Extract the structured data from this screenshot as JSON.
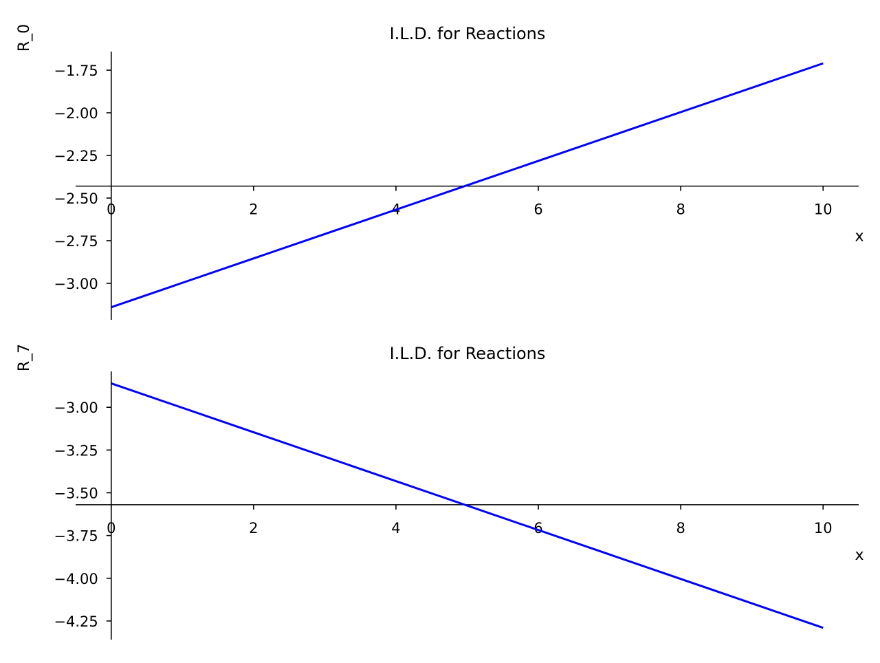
{
  "chart_data": [
    {
      "type": "line",
      "title": "I.L.D. for Reactions",
      "xlabel": "x",
      "ylabel": "R_0",
      "xlim": [
        -0.5,
        10.5
      ],
      "ylim": [
        -3.214,
        -1.641
      ],
      "xticks": [
        0,
        2,
        4,
        6,
        8,
        10
      ],
      "yticks": [
        -1.75,
        -2.0,
        -2.25,
        -2.5,
        -2.75,
        -3.0
      ],
      "ytick_labels": [
        "−1.75",
        "−2.00",
        "−2.25",
        "−2.50",
        "−2.75",
        "−3.00"
      ],
      "x_axis_at_y": -2.43,
      "grid": false,
      "color": "#0000ff",
      "series": [
        {
          "x": [
            0,
            10
          ],
          "y": [
            -3.14,
            -1.71
          ]
        }
      ]
    },
    {
      "type": "line",
      "title": "I.L.D. for Reactions",
      "xlabel": "x",
      "ylabel": "R_7",
      "xlim": [
        -0.5,
        10.5
      ],
      "ylim": [
        -4.359,
        -2.79
      ],
      "xticks": [
        0,
        2,
        4,
        6,
        8,
        10
      ],
      "yticks": [
        -3.0,
        -3.25,
        -3.5,
        -3.75,
        -4.0,
        -4.25
      ],
      "ytick_labels": [
        "−3.00",
        "−3.25",
        "−3.50",
        "−3.75",
        "−4.00",
        "−4.25"
      ],
      "x_axis_at_y": -3.57,
      "grid": false,
      "color": "#0000ff",
      "series": [
        {
          "x": [
            0,
            10
          ],
          "y": [
            -2.86,
            -4.29
          ]
        }
      ]
    }
  ]
}
